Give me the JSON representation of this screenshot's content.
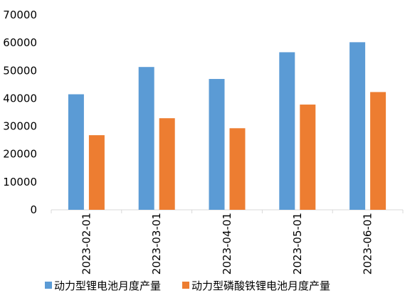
{
  "chart_data": {
    "type": "bar",
    "categories": [
      "2023-02-01",
      "2023-03-01",
      "2023-04-01",
      "2023-05-01",
      "2023-06-01"
    ],
    "series": [
      {
        "name": "动力型锂电池月度产量",
        "color": "#5B9BD5",
        "values": [
          41500,
          51300,
          47000,
          56600,
          60200
        ]
      },
      {
        "name": "动力型磷酸铁锂电池月度产量",
        "color": "#ED7D31",
        "values": [
          26800,
          32900,
          29300,
          37800,
          42300
        ]
      }
    ],
    "yticks": [
      "0",
      "10000",
      "20000",
      "30000",
      "40000",
      "50000",
      "60000",
      "70000"
    ],
    "ylim": [
      0,
      70000
    ],
    "grid": false,
    "legend_position": "bottom"
  }
}
